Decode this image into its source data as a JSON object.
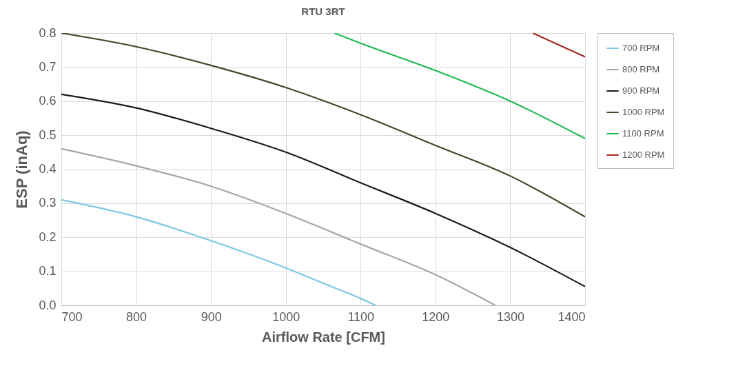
{
  "chart_data": {
    "type": "line",
    "title": "RTU 3RT",
    "xlabel": "Airflow Rate [CFM]",
    "ylabel": "ESP (inAq)",
    "xlim": [
      700,
      1400
    ],
    "xticks": [
      700,
      800,
      900,
      1000,
      1100,
      1200,
      1300,
      1400
    ],
    "ylim": [
      0,
      0.8
    ],
    "yticks": [
      {
        "value": 0,
        "label": "0.0"
      },
      0.1,
      0.2,
      0.3,
      0.4,
      0.5,
      0.6,
      0.7,
      0.8
    ],
    "grid": true,
    "legend": "right",
    "line_style": "solid",
    "series": [
      {
        "name": "700 RPM",
        "color": "#7ec8e3",
        "x": [
          700,
          800,
          900,
          1000,
          1050,
          1100,
          1120
        ],
        "values": [
          0.31,
          0.26,
          0.19,
          0.11,
          0.065,
          0.02,
          0
        ]
      },
      {
        "name": "800 RPM",
        "color": "#a6a6a6",
        "x": [
          700,
          800,
          900,
          1000,
          1100,
          1200,
          1280
        ],
        "values": [
          0.46,
          0.41,
          0.35,
          0.27,
          0.18,
          0.09,
          0
        ]
      },
      {
        "name": "900 RPM",
        "color": "#1a1a1a",
        "x": [
          700,
          800,
          900,
          1000,
          1100,
          1200,
          1300,
          1400
        ],
        "values": [
          0.62,
          0.58,
          0.52,
          0.45,
          0.36,
          0.27,
          0.17,
          0.055
        ]
      },
      {
        "name": "1000 RPM",
        "color": "#4a4528",
        "x": [
          700,
          800,
          900,
          1000,
          1100,
          1200,
          1300,
          1400
        ],
        "values": [
          0.8,
          0.76,
          0.705,
          0.64,
          0.56,
          0.47,
          0.38,
          0.26
        ]
      },
      {
        "name": "1100 RPM",
        "color": "#1db954",
        "x": [
          1065,
          1100,
          1200,
          1300,
          1400
        ],
        "values": [
          0.8,
          0.77,
          0.69,
          0.6,
          0.49
        ]
      },
      {
        "name": "1200 RPM",
        "color": "#a52a2a",
        "x": [
          1330,
          1400
        ],
        "values": [
          0.8,
          0.73
        ]
      }
    ]
  }
}
